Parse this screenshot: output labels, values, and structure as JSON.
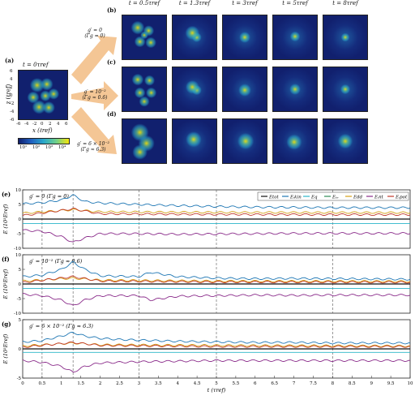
{
  "panel_a": {
    "label": "(a)",
    "title": "t = 0τref",
    "ylabel": "z (ℓref)",
    "xlabel": "x (ℓref)",
    "xticks": [
      "-6",
      "-4",
      "-2",
      "0",
      "2",
      "4",
      "6"
    ],
    "yticks": [
      "6",
      "4",
      "2",
      "0",
      "-2",
      "-4",
      "-6"
    ],
    "colorbar_ticks": [
      "10¹",
      "10²",
      "10³",
      "10⁴"
    ]
  },
  "rows": [
    {
      "label": "(b)",
      "caption_line1": "g′ = 0",
      "caption_line2": "(Γg = 0)"
    },
    {
      "label": "(c)",
      "caption_line1": "g′ = 10⁻²",
      "caption_line2": "(Γg ≈ 0.6)"
    },
    {
      "label": "(d)",
      "caption_line1": "g′ = 6 × 10⁻²",
      "caption_line2": "(Γg ≈ 6.3)"
    }
  ],
  "columns": [
    "t = 0.5τref",
    "t = 1.3τref",
    "t = 3τref",
    "t = 5τref",
    "t = 8τref"
  ],
  "colors": {
    "Etot": "#111111",
    "Ekin_c": "#1f77b4",
    "Eq": "#2ab5c9",
    "Eint": "#8a2b8a",
    "Edd": "#d4a017",
    "Epot": "#c0392b",
    "Ekin_i": "#2e8b57",
    "heat_low": "#11206e",
    "heat_high": "#f5e50a"
  },
  "chart_data": [
    {
      "type": "line",
      "panel": "(e)",
      "annotation": "g′ = 0 (Γg = 0)",
      "ylabel": "E (10³Eref)",
      "ylim": [
        -10,
        10
      ],
      "yticks": [
        "10",
        "5",
        "0",
        "-5",
        "-10"
      ],
      "legend": [
        "Etot",
        "Eᵢkin",
        "Eq",
        "Eₜₑ",
        "Edd",
        "Eᵢnt",
        "Eᵢpot"
      ],
      "legend_position": "top-right",
      "vlines": [
        0.5,
        1.3,
        3,
        5,
        8
      ],
      "series": [
        {
          "name": "Etot",
          "x": [
            0,
            10
          ],
          "y": [
            0,
            0
          ]
        },
        {
          "name": "Eᵢkin",
          "x": [
            0,
            0.5,
            1.0,
            1.3,
            1.6,
            2,
            3,
            4,
            5,
            6,
            7,
            8,
            9,
            10
          ],
          "y": [
            5.2,
            5.6,
            6.5,
            8.2,
            6.0,
            5.5,
            5.0,
            4.6,
            4.3,
            4.1,
            4.0,
            3.9,
            3.9,
            3.9
          ]
        },
        {
          "name": "Eq",
          "x": [
            0,
            10
          ],
          "y": [
            -1.5,
            -1.5
          ]
        },
        {
          "name": "Eᵢnt",
          "x": [
            0,
            0.5,
            1.0,
            1.3,
            1.6,
            2,
            3,
            4,
            5,
            6,
            7,
            8,
            9,
            10
          ],
          "y": [
            -3.8,
            -4.2,
            -6.0,
            -8.0,
            -6.5,
            -5.0,
            -5.0,
            -5.2,
            -5.1,
            -5.0,
            -4.9,
            -4.9,
            -4.9,
            -4.9
          ]
        },
        {
          "name": "Edd",
          "x": [
            0,
            1.3,
            2,
            5,
            10
          ],
          "y": [
            2.0,
            3.2,
            2.5,
            2.3,
            2.2
          ]
        },
        {
          "name": "Eᵢpot",
          "x": [
            0,
            1.3,
            2,
            5,
            10
          ],
          "y": [
            1.2,
            3.5,
            1.8,
            1.6,
            1.5
          ]
        }
      ]
    },
    {
      "type": "line",
      "panel": "(f)",
      "annotation": "g′ = 10⁻² (Γg ≈ 0.6)",
      "ylabel": "E (10³Eref)",
      "ylim": [
        -10,
        10
      ],
      "yticks": [
        "10",
        "5",
        "0",
        "-5",
        "-10"
      ],
      "vlines": [
        0.5,
        1.3,
        3,
        5,
        8
      ],
      "series": [
        {
          "name": "Etot",
          "x": [
            0,
            10
          ],
          "y": [
            0,
            0
          ]
        },
        {
          "name": "Eᵢkin",
          "x": [
            0,
            0.5,
            1.0,
            1.3,
            1.6,
            2,
            3,
            3.3,
            4,
            5,
            6,
            7,
            8,
            9,
            10
          ],
          "y": [
            2.5,
            3.0,
            5.0,
            7.5,
            5.0,
            2.8,
            2.5,
            4.0,
            2.5,
            2.0,
            1.8,
            1.9,
            1.8,
            1.7,
            1.6
          ]
        },
        {
          "name": "Eq",
          "x": [
            0,
            10
          ],
          "y": [
            -1.5,
            -1.5
          ]
        },
        {
          "name": "Eᵢnt",
          "x": [
            0,
            0.5,
            1.0,
            1.3,
            1.6,
            2,
            3,
            3.3,
            4,
            5,
            6,
            7,
            8,
            9,
            10
          ],
          "y": [
            -3.5,
            -4.0,
            -5.5,
            -7.5,
            -5.5,
            -4.0,
            -4.0,
            -5.5,
            -4.2,
            -4.0,
            -3.8,
            -3.9,
            -3.8,
            -3.8,
            -3.8
          ]
        },
        {
          "name": "Edd",
          "x": [
            0,
            1.3,
            2,
            5,
            10
          ],
          "y": [
            1.0,
            2.0,
            1.3,
            1.0,
            0.9
          ]
        },
        {
          "name": "Eᵢpot",
          "x": [
            0,
            1.3,
            2,
            5,
            10
          ],
          "y": [
            0.5,
            2.5,
            1.0,
            0.7,
            0.6
          ]
        }
      ]
    },
    {
      "type": "line",
      "panel": "(g)",
      "annotation": "g′ = 6 × 10⁻² (Γg ≈ 6.3)",
      "ylabel": "E (10³Eref)",
      "ylim": [
        -5,
        5
      ],
      "yticks": [
        "5",
        "0",
        "-5"
      ],
      "xlabel": "t (τref)",
      "xticks": [
        "0",
        "0.5",
        "1",
        "1.5",
        "2",
        "2.5",
        "3",
        "3.5",
        "4",
        "4.5",
        "5",
        "5.5",
        "6",
        "6.5",
        "7",
        "7.5",
        "8",
        "8.5",
        "9",
        "9.5",
        "10"
      ],
      "vlines": [
        0.5,
        1.3,
        3,
        5,
        8
      ],
      "series": [
        {
          "name": "Etot",
          "x": [
            0,
            10
          ],
          "y": [
            0,
            0
          ]
        },
        {
          "name": "Eᵢkin",
          "x": [
            0,
            0.5,
            1.0,
            1.3,
            1.6,
            2,
            2.5,
            3,
            4,
            5,
            6,
            7,
            8,
            9,
            10
          ],
          "y": [
            1.2,
            1.4,
            2.2,
            2.8,
            2.2,
            1.8,
            1.6,
            1.5,
            1.3,
            1.2,
            1.1,
            1.1,
            1.0,
            1.0,
            1.0
          ]
        },
        {
          "name": "Eq",
          "x": [
            0,
            10
          ],
          "y": [
            -0.6,
            -0.6
          ]
        },
        {
          "name": "Eᵢnt",
          "x": [
            0,
            0.5,
            1.0,
            1.3,
            1.6,
            2,
            2.5,
            3,
            4,
            5,
            6,
            7,
            8,
            9,
            10
          ],
          "y": [
            -2.0,
            -2.3,
            -3.0,
            -4.0,
            -3.0,
            -2.4,
            -2.3,
            -2.2,
            -2.1,
            -2.0,
            -2.0,
            -2.0,
            -2.0,
            -2.0,
            -2.0
          ]
        },
        {
          "name": "Edd",
          "x": [
            0,
            1.3,
            2,
            5,
            10
          ],
          "y": [
            0.5,
            1.0,
            0.7,
            0.6,
            0.5
          ]
        },
        {
          "name": "Eᵢpot",
          "x": [
            0,
            1.3,
            2,
            5,
            10
          ],
          "y": [
            0.3,
            1.1,
            0.6,
            0.4,
            0.4
          ]
        }
      ]
    }
  ]
}
